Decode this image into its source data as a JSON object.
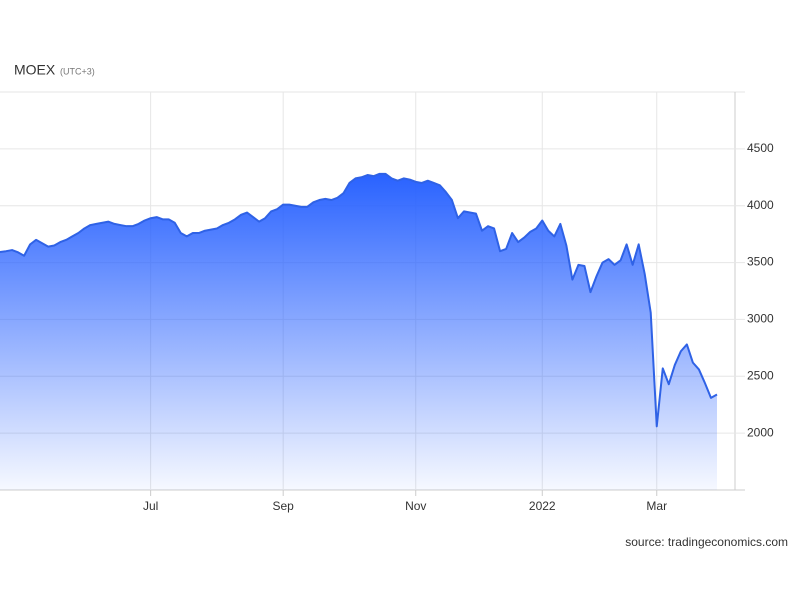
{
  "chart_data": {
    "type": "area",
    "title": "MOEX",
    "subtitle": "(UTC+3)",
    "source": "source: tradingeconomics.com",
    "color": "#2f62e6",
    "grid": true,
    "categories": [
      null,
      null,
      null,
      null,
      null,
      null,
      null,
      null,
      null,
      null,
      null,
      null,
      null,
      null,
      null,
      null,
      null,
      null,
      null,
      null,
      null,
      null,
      null,
      null,
      null,
      "Jul",
      null,
      null,
      null,
      null,
      null,
      null,
      null,
      null,
      null,
      null,
      null,
      null,
      null,
      null,
      null,
      null,
      null,
      null,
      null,
      null,
      null,
      "Sep",
      null,
      null,
      null,
      null,
      null,
      null,
      null,
      null,
      null,
      null,
      null,
      null,
      null,
      null,
      null,
      null,
      null,
      null,
      null,
      null,
      null,
      "Nov",
      null,
      null,
      null,
      null,
      null,
      null,
      null,
      null,
      null,
      null,
      null,
      null,
      null,
      null,
      null,
      null,
      null,
      null,
      null,
      null,
      "2022",
      null,
      null,
      null,
      null,
      null,
      null,
      null,
      null,
      null,
      null,
      null,
      null,
      null,
      null,
      null,
      null,
      null,
      null,
      "Mar",
      null,
      null,
      null,
      null,
      null,
      null,
      null,
      null,
      null,
      null
    ],
    "values": [
      3593,
      3600,
      3610,
      3590,
      3560,
      3660,
      3700,
      3670,
      3640,
      3650,
      3680,
      3700,
      3730,
      3760,
      3800,
      3830,
      3840,
      3850,
      3860,
      3840,
      3830,
      3820,
      3820,
      3840,
      3870,
      3890,
      3900,
      3880,
      3880,
      3850,
      3760,
      3730,
      3760,
      3760,
      3780,
      3790,
      3800,
      3830,
      3850,
      3880,
      3920,
      3940,
      3900,
      3860,
      3890,
      3950,
      3970,
      4010,
      4010,
      4000,
      3990,
      3990,
      4030,
      4050,
      4060,
      4050,
      4070,
      4110,
      4200,
      4240,
      4250,
      4270,
      4260,
      4280,
      4280,
      4240,
      4220,
      4240,
      4230,
      4210,
      4200,
      4220,
      4200,
      4180,
      4120,
      4050,
      3890,
      3950,
      3940,
      3930,
      3780,
      3820,
      3800,
      3600,
      3620,
      3760,
      3680,
      3720,
      3770,
      3800,
      3870,
      3780,
      3730,
      3840,
      3650,
      3350,
      3480,
      3470,
      3240,
      3380,
      3500,
      3530,
      3480,
      3520,
      3660,
      3480,
      3660,
      3400,
      3060,
      2060,
      2570,
      2430,
      2600,
      2720,
      2780,
      2620,
      2560,
      2440,
      2310,
      2340
    ],
    "ylim": [
      1500,
      5000
    ],
    "yticks": [
      2000,
      2500,
      3000,
      3500,
      4000,
      4500
    ]
  }
}
